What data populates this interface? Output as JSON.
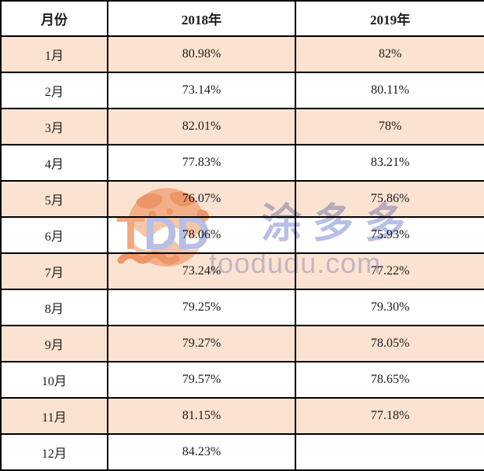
{
  "table": {
    "columns": [
      {
        "key": "month",
        "label": "月份"
      },
      {
        "key": "y2018",
        "label": "2018年"
      },
      {
        "key": "y2019",
        "label": "2019年"
      }
    ],
    "rows": [
      {
        "month": "1月",
        "y2018": "80.98%",
        "y2019": "82%"
      },
      {
        "month": "2月",
        "y2018": "73.14%",
        "y2019": "80.11%"
      },
      {
        "month": "3月",
        "y2018": "82.01%",
        "y2019": "78%"
      },
      {
        "month": "4月",
        "y2018": "77.83%",
        "y2019": "83.21%"
      },
      {
        "month": "5月",
        "y2018": "76.07%",
        "y2019": "75.86%"
      },
      {
        "month": "6月",
        "y2018": "78.06%",
        "y2019": "75.93%"
      },
      {
        "month": "7月",
        "y2018": "73.24%",
        "y2019": "77.22%"
      },
      {
        "month": "8月",
        "y2018": "79.25%",
        "y2019": "79.30%"
      },
      {
        "month": "9月",
        "y2018": "79.27%",
        "y2019": "78.05%"
      },
      {
        "month": "10月",
        "y2018": "79.57%",
        "y2019": "78.65%"
      },
      {
        "month": "11月",
        "y2018": "81.15%",
        "y2019": "77.18%"
      },
      {
        "month": "12月",
        "y2018": "84.23%",
        "y2019": ""
      }
    ]
  },
  "watermark": {
    "logo_t": "T",
    "logo_dd": "DD",
    "brand": "涂多多",
    "domain": "toodudu.com"
  },
  "colors": {
    "row_highlight": "#fce3d1",
    "border": "#000000",
    "text": "#1c1c1c",
    "watermark_salmon": "#f6c5a7",
    "watermark_salmon_dark": "#efa97e",
    "watermark_blue": "#b7bfe7",
    "watermark_blue_light": "#c6cdee"
  }
}
